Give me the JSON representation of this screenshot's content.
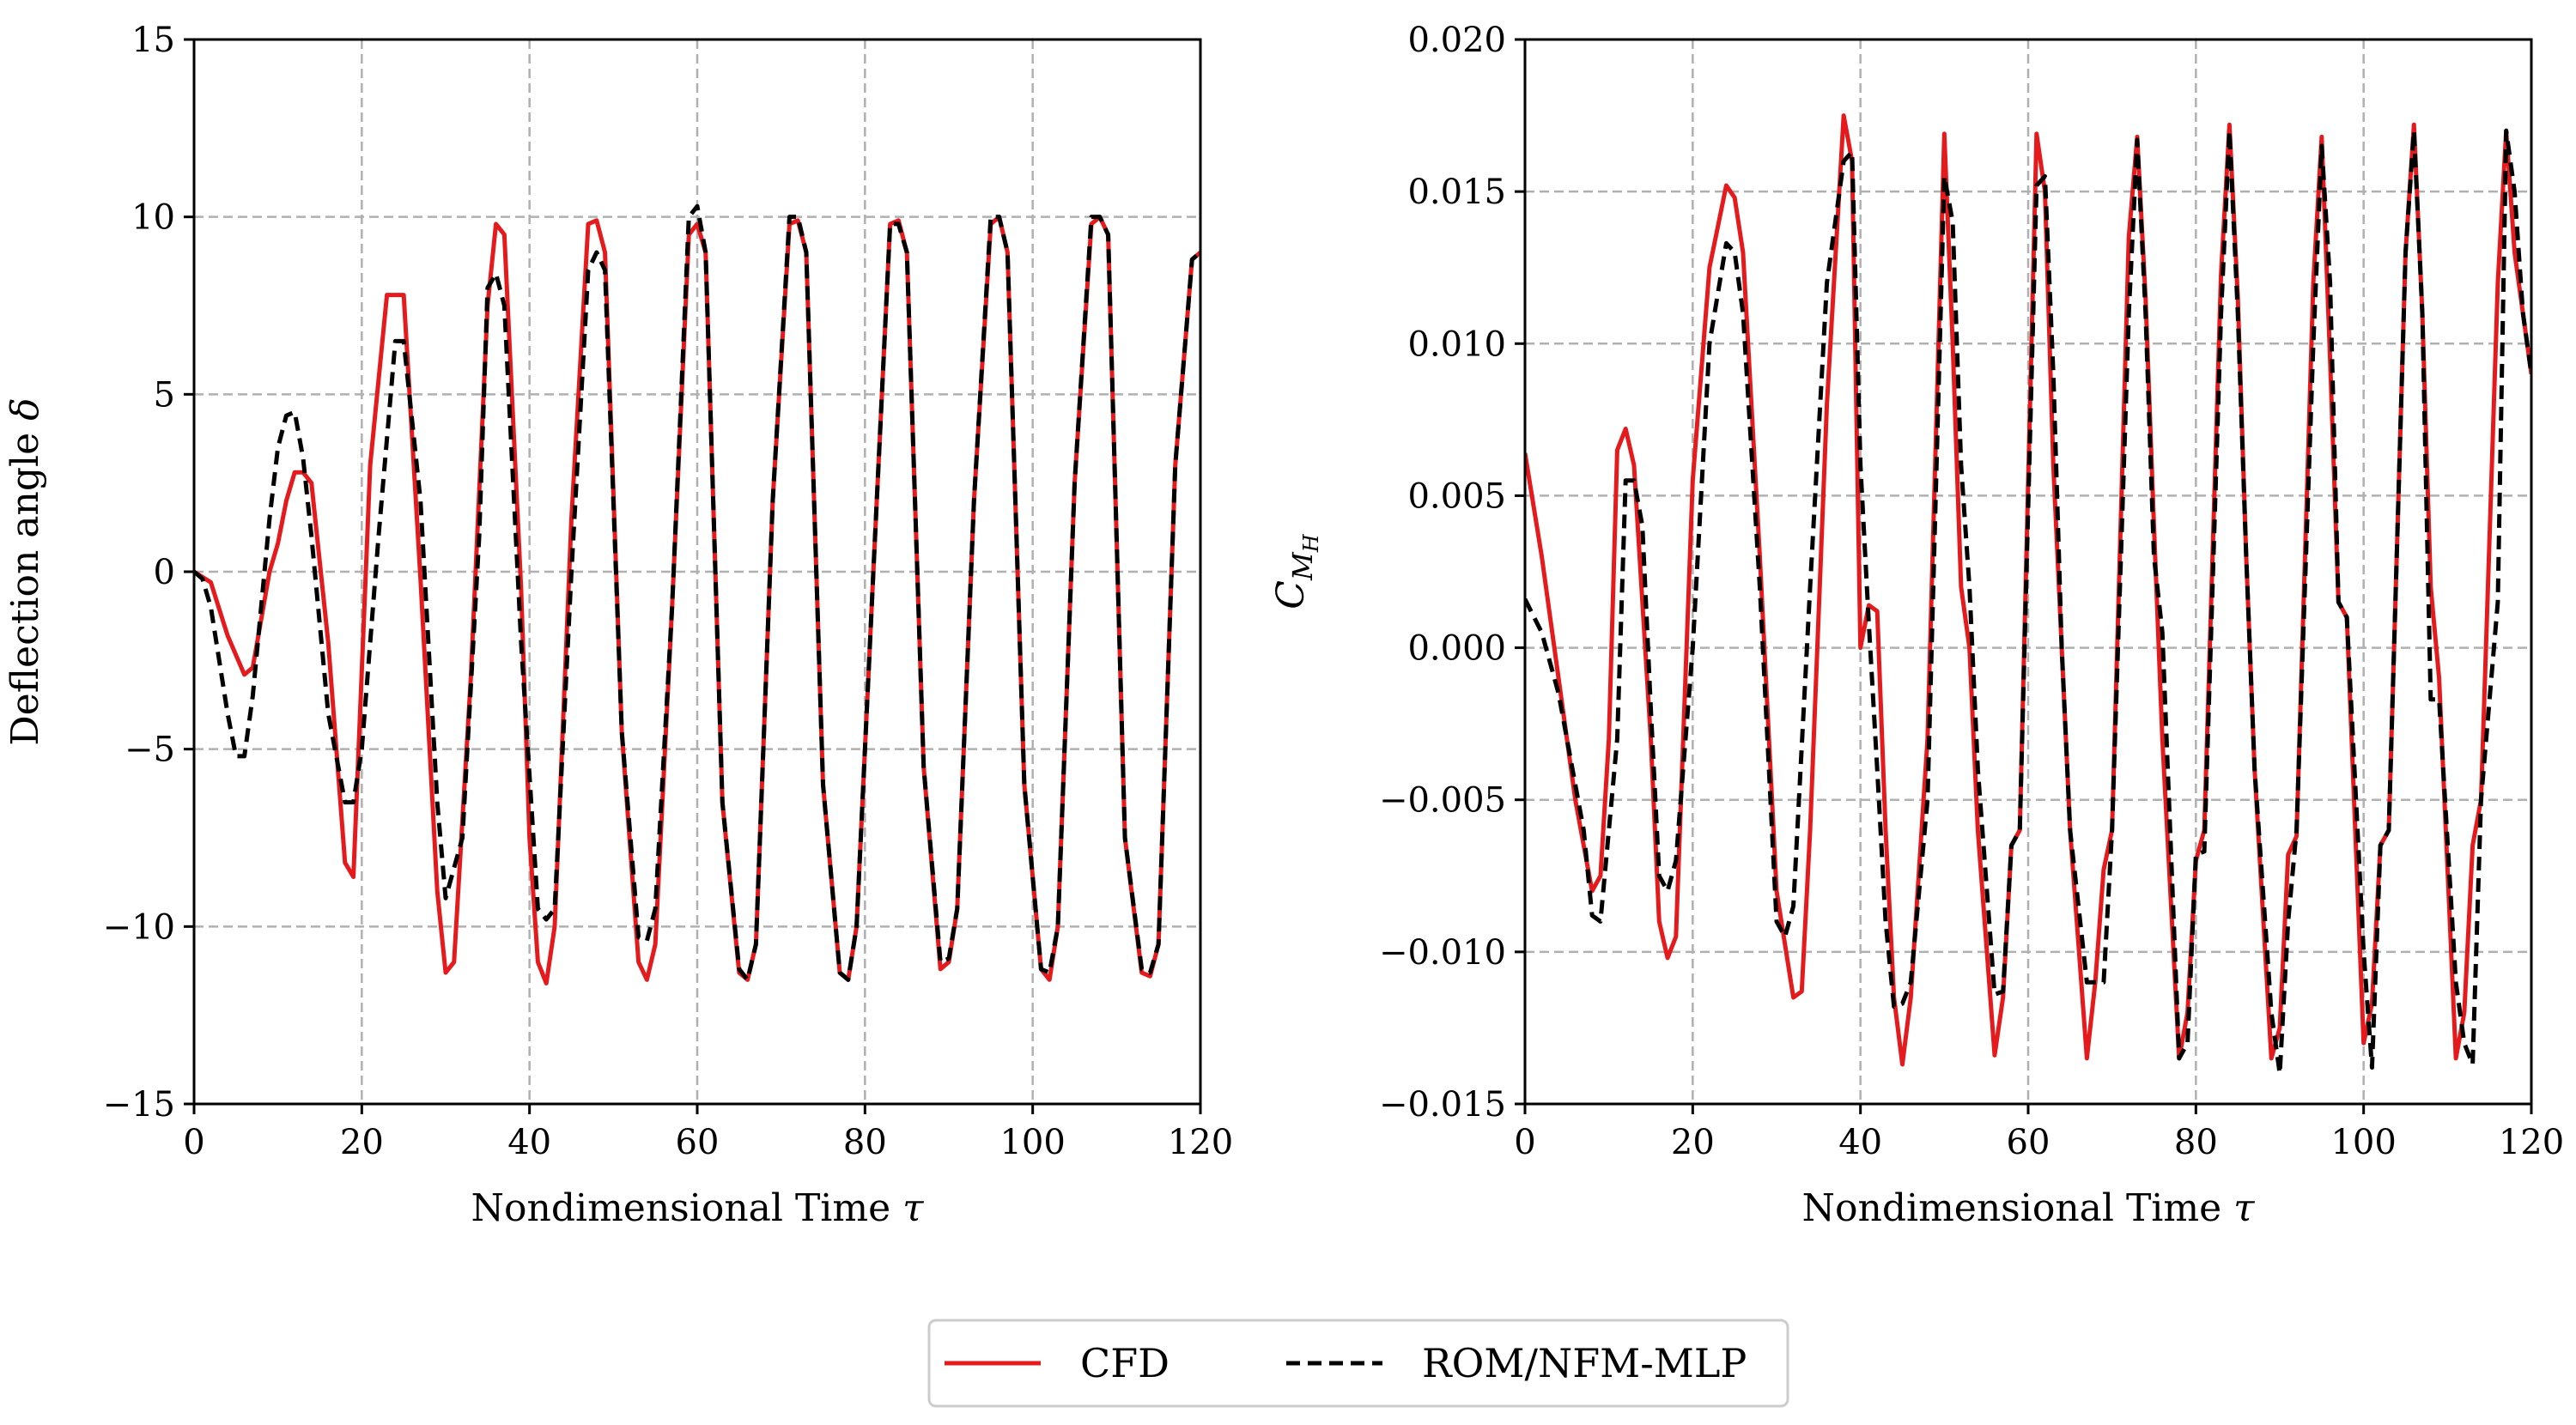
{
  "figure": {
    "legend": {
      "entries": [
        {
          "label": "CFD",
          "color": "#e41a1c",
          "dash": "solid"
        },
        {
          "label": "ROM/NFM-MLP",
          "color": "#000000",
          "dash": "dashed"
        }
      ]
    }
  },
  "chart_data": [
    {
      "type": "line",
      "title": "",
      "xlabel": "Nondimensional Time",
      "xlabel_symbol": "τ",
      "ylabel": "Deflection angle",
      "ylabel_symbol": "δ",
      "xlim": [
        0,
        120
      ],
      "ylim": [
        -15,
        15
      ],
      "xticks": [
        0,
        20,
        40,
        60,
        80,
        100,
        120
      ],
      "yticks": [
        -15,
        -10,
        -5,
        0,
        5,
        10,
        15
      ],
      "ytick_labels": [
        "−15",
        "−10",
        "−5",
        "0",
        "5",
        "10",
        "15"
      ],
      "grid": true,
      "series": [
        {
          "name": "CFD",
          "color": "#e41a1c",
          "dash": "solid",
          "x": [
            0,
            2,
            4,
            6,
            7,
            9,
            10,
            11,
            12,
            13,
            14,
            16,
            18,
            19,
            21,
            23,
            25,
            27,
            29,
            30,
            31,
            33,
            35,
            36,
            37,
            39,
            40,
            41,
            42,
            43,
            45,
            47,
            48,
            49,
            51,
            53,
            54,
            55,
            57,
            59,
            60,
            61,
            63,
            65,
            66,
            67,
            69,
            71,
            72,
            73,
            75,
            77,
            78,
            79,
            81,
            83,
            84,
            85,
            87,
            89,
            90,
            91,
            93,
            95,
            96,
            97,
            99,
            101,
            102,
            103,
            105,
            107,
            108,
            109,
            111,
            113,
            114,
            115,
            117,
            119,
            120
          ],
          "y": [
            0,
            -0.3,
            -1.8,
            -2.9,
            -2.7,
            0,
            0.8,
            2.0,
            2.8,
            2.8,
            2.5,
            -2.0,
            -8.2,
            -8.6,
            3.0,
            7.8,
            7.8,
            -0.2,
            -9.0,
            -11.3,
            -11.0,
            -3.0,
            7.5,
            9.8,
            9.5,
            -0.5,
            -7.5,
            -11.0,
            -11.6,
            -10.0,
            1.5,
            9.8,
            9.9,
            9.0,
            -4.5,
            -11.0,
            -11.5,
            -10.5,
            -1.0,
            9.5,
            9.8,
            9.0,
            -6.5,
            -11.3,
            -11.5,
            -10.5,
            2.0,
            9.8,
            9.9,
            9.0,
            -6.0,
            -11.3,
            -11.5,
            -10.0,
            0.0,
            9.8,
            9.9,
            9.0,
            -5.5,
            -11.2,
            -11.0,
            -9.5,
            2.0,
            9.8,
            10.0,
            9.0,
            -6.0,
            -11.2,
            -11.5,
            -10.0,
            2.5,
            9.8,
            10.0,
            9.5,
            -7.5,
            -11.3,
            -11.4,
            -10.5,
            3.0,
            8.8,
            9.0
          ]
        },
        {
          "name": "ROM/NFM-MLP",
          "color": "#000000",
          "dash": "dashed",
          "x": [
            0,
            1,
            2,
            3,
            4,
            5,
            6,
            7,
            8,
            9,
            10,
            11,
            12,
            13,
            14,
            16,
            18,
            19,
            20,
            22,
            24,
            25,
            27,
            29,
            30,
            32,
            34,
            35,
            36,
            37,
            39,
            41,
            42,
            43,
            45,
            47,
            48,
            49,
            51,
            53,
            54,
            55,
            57,
            59,
            60,
            61,
            63,
            65,
            66,
            67,
            69,
            71,
            72,
            73,
            75,
            77,
            78,
            79,
            81,
            83,
            84,
            85,
            87,
            89,
            90,
            91,
            93,
            95,
            96,
            97,
            99,
            101,
            102,
            103,
            105,
            107,
            108,
            109,
            111,
            113,
            114,
            115,
            117,
            119,
            120
          ],
          "y": [
            0,
            -0.2,
            -1.0,
            -2.5,
            -4.0,
            -5.2,
            -5.2,
            -3.5,
            -1.0,
            1.5,
            3.5,
            4.4,
            4.5,
            3.2,
            1.0,
            -4.0,
            -6.5,
            -6.5,
            -5.0,
            1.0,
            6.5,
            6.5,
            2.0,
            -6.5,
            -9.2,
            -7.5,
            1.0,
            8.0,
            8.4,
            7.5,
            -2.0,
            -9.5,
            -9.8,
            -9.5,
            0.0,
            8.5,
            9.0,
            8.5,
            -4.5,
            -10.3,
            -10.4,
            -9.5,
            -1.0,
            10.0,
            10.3,
            9.0,
            -6.5,
            -11.2,
            -11.5,
            -10.5,
            2.0,
            10.0,
            10.0,
            9.0,
            -6.0,
            -11.3,
            -11.5,
            -10.0,
            0.0,
            9.8,
            9.8,
            9.0,
            -5.5,
            -11.0,
            -10.9,
            -9.5,
            2.0,
            10.0,
            10.0,
            9.0,
            -6.0,
            -11.2,
            -11.3,
            -10.0,
            2.5,
            10.0,
            10.0,
            9.5,
            -7.5,
            -11.2,
            -11.3,
            -10.5,
            3.0,
            8.8,
            9.0
          ]
        }
      ]
    },
    {
      "type": "line",
      "title": "",
      "xlabel": "Nondimensional Time",
      "xlabel_symbol": "τ",
      "ylabel": "C",
      "ylabel_sub": "M",
      "ylabel_subsub": "H",
      "xlim": [
        0,
        120
      ],
      "ylim": [
        -0.015,
        0.02
      ],
      "xticks": [
        0,
        20,
        40,
        60,
        80,
        100,
        120
      ],
      "yticks": [
        -0.015,
        -0.01,
        -0.005,
        0,
        0.005,
        0.01,
        0.015,
        0.02
      ],
      "ytick_labels": [
        "−0.015",
        "−0.010",
        "−0.005",
        "0.000",
        "0.005",
        "0.010",
        "0.015",
        "0.020"
      ],
      "grid": true,
      "series": [
        {
          "name": "CFD",
          "color": "#e41a1c",
          "dash": "solid",
          "x": [
            0,
            2,
            4,
            6,
            8,
            9,
            10,
            11,
            12,
            13,
            15,
            16,
            17,
            18,
            20,
            22,
            24,
            25,
            26,
            28,
            30,
            32,
            33,
            34,
            36,
            38,
            39,
            40,
            41,
            42,
            43,
            44,
            45,
            46,
            48,
            50,
            51,
            52,
            53,
            54,
            56,
            57,
            58,
            59,
            61,
            62,
            63,
            64,
            65,
            67,
            68,
            69,
            70,
            72,
            73,
            74,
            75,
            76,
            78,
            79,
            80,
            81,
            83,
            84,
            85,
            86,
            87,
            89,
            90,
            91,
            92,
            94,
            95,
            96,
            97,
            98,
            100,
            101,
            102,
            103,
            105,
            106,
            107,
            108,
            109,
            111,
            112,
            113,
            114,
            116,
            117,
            118,
            119,
            120
          ],
          "y": [
            0.0064,
            0.003,
            -0.001,
            -0.005,
            -0.008,
            -0.0075,
            -0.003,
            0.0065,
            0.0072,
            0.006,
            -0.003,
            -0.009,
            -0.0102,
            -0.0095,
            0.0055,
            0.0125,
            0.0152,
            0.0148,
            0.013,
            0.003,
            -0.008,
            -0.0115,
            -0.0113,
            -0.006,
            0.008,
            0.0175,
            0.016,
            0.0,
            0.0014,
            0.0012,
            -0.006,
            -0.0115,
            -0.0137,
            -0.0115,
            -0.003,
            0.0169,
            0.01,
            0.002,
            0.0,
            -0.006,
            -0.0134,
            -0.0115,
            -0.0065,
            -0.006,
            0.0169,
            0.015,
            0.006,
            0.0,
            -0.006,
            -0.0135,
            -0.011,
            -0.0073,
            -0.006,
            0.0135,
            0.0168,
            0.0115,
            0.004,
            -0.003,
            -0.0135,
            -0.012,
            -0.007,
            -0.006,
            0.0123,
            0.0172,
            0.0115,
            0.003,
            -0.004,
            -0.0135,
            -0.0125,
            -0.0068,
            -0.0062,
            0.012,
            0.0168,
            0.0095,
            0.0015,
            0.001,
            -0.013,
            -0.0117,
            -0.0065,
            -0.006,
            0.013,
            0.0172,
            0.011,
            0.002,
            -0.001,
            -0.0135,
            -0.012,
            -0.0065,
            -0.005,
            0.012,
            0.017,
            0.013,
            0.011,
            0.009
          ]
        },
        {
          "name": "ROM/NFM-MLP",
          "color": "#000000",
          "dash": "dashed",
          "x": [
            0,
            2,
            4,
            6,
            7,
            8,
            9,
            10,
            11,
            12,
            13,
            14,
            15,
            16,
            17,
            18,
            20,
            22,
            24,
            25,
            26,
            28,
            30,
            31,
            32,
            34,
            36,
            38,
            39,
            40,
            41,
            42,
            43,
            44,
            45,
            46,
            48,
            50,
            51,
            52,
            53,
            54,
            56,
            57,
            58,
            59,
            61,
            62,
            63,
            64,
            65,
            67,
            68,
            69,
            70,
            72,
            73,
            74,
            75,
            76,
            78,
            79,
            80,
            81,
            83,
            84,
            85,
            86,
            87,
            89,
            90,
            91,
            92,
            94,
            95,
            96,
            97,
            98,
            100,
            101,
            102,
            103,
            105,
            106,
            107,
            108,
            109,
            111,
            112,
            113,
            114,
            116,
            117,
            118,
            119,
            120
          ],
          "y": [
            0.0016,
            0.0005,
            -0.0015,
            -0.0045,
            -0.006,
            -0.0088,
            -0.009,
            -0.006,
            -0.003,
            0.0055,
            0.0055,
            0.004,
            -0.002,
            -0.0075,
            -0.008,
            -0.007,
            0.0,
            0.01,
            0.0133,
            0.013,
            0.011,
            0.002,
            -0.009,
            -0.0095,
            -0.0085,
            0.002,
            0.012,
            0.016,
            0.0163,
            0.006,
            0.0008,
            -0.004,
            -0.009,
            -0.0118,
            -0.0117,
            -0.011,
            -0.005,
            0.0155,
            0.014,
            0.006,
            0.002,
            -0.004,
            -0.0114,
            -0.0113,
            -0.0065,
            -0.006,
            0.0152,
            0.0155,
            0.009,
            0.0,
            -0.006,
            -0.011,
            -0.011,
            -0.011,
            -0.006,
            0.011,
            0.0167,
            0.011,
            0.003,
            0.0005,
            -0.0135,
            -0.013,
            -0.0068,
            -0.0067,
            0.011,
            0.017,
            0.011,
            0.003,
            -0.004,
            -0.012,
            -0.014,
            -0.009,
            -0.006,
            0.01,
            0.0165,
            0.012,
            0.0015,
            0.001,
            -0.01,
            -0.0138,
            -0.0065,
            -0.006,
            0.013,
            0.017,
            0.011,
            -0.0017,
            -0.0017,
            -0.011,
            -0.013,
            -0.0137,
            -0.005,
            0.0015,
            0.017,
            0.015,
            0.011,
            0.009
          ]
        }
      ]
    }
  ]
}
